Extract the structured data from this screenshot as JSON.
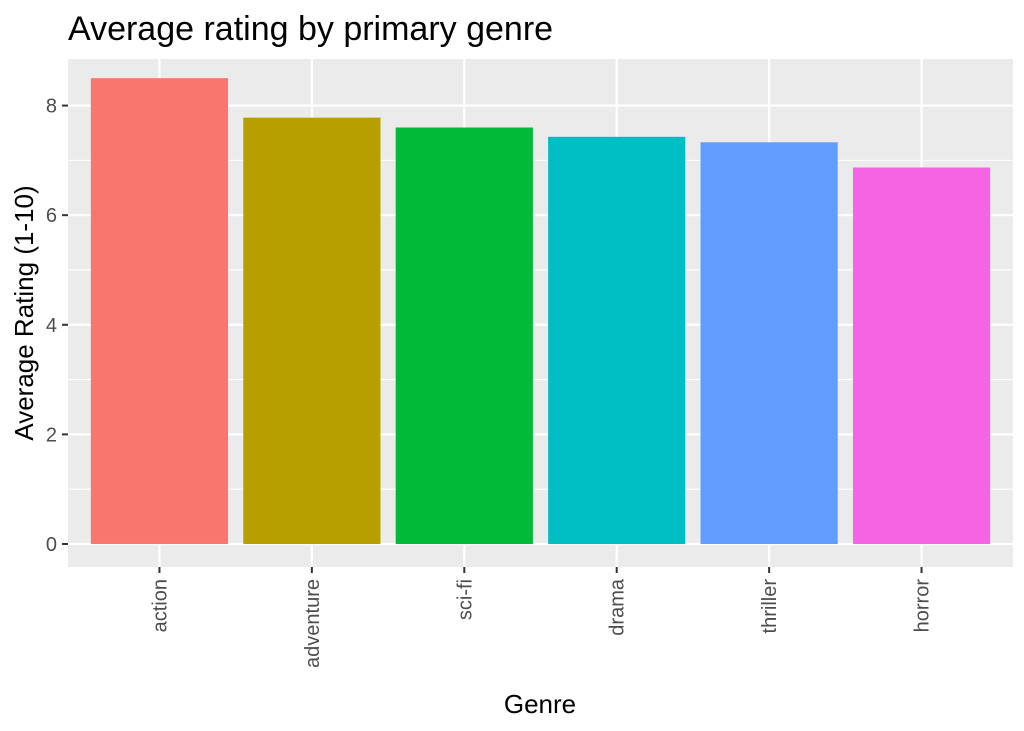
{
  "chart_data": {
    "type": "bar",
    "title": "Average rating by primary genre",
    "xlabel": "Genre",
    "ylabel": "Average Rating (1-10)",
    "categories": [
      "action",
      "adventure",
      "sci-fi",
      "drama",
      "thriller",
      "horror"
    ],
    "values": [
      8.5,
      7.78,
      7.6,
      7.43,
      7.33,
      6.87
    ],
    "colors": [
      "#F8766D",
      "#B79F00",
      "#00BA38",
      "#00BFC4",
      "#619CFF",
      "#F564E3"
    ],
    "yticks": [
      "0",
      "2",
      "4",
      "6",
      "8"
    ],
    "ylim": [
      -0.42,
      8.85
    ],
    "grid": true,
    "legend": "none"
  }
}
